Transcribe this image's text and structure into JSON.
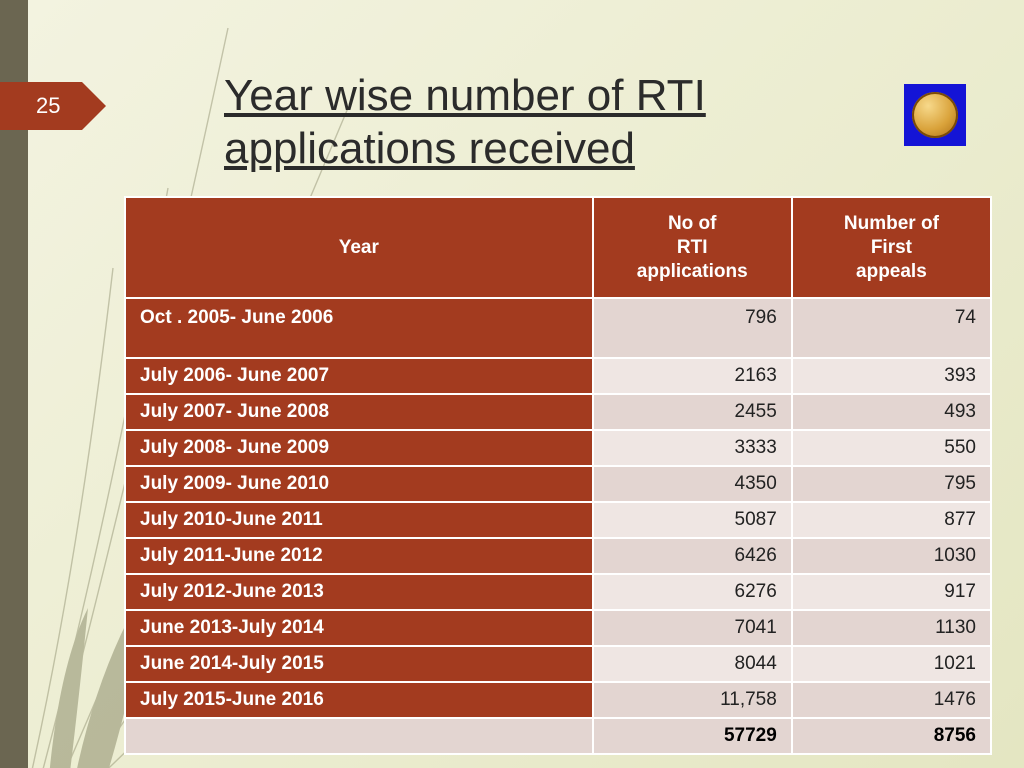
{
  "page_number": "25",
  "title": "Year wise number of RTI applications received",
  "colors": {
    "accent": "#a33b1f",
    "sidebar": "#6b6651",
    "logo_bg": "#1414d6",
    "bg_grad_from": "#f3f3e0",
    "bg_grad_to": "#e4e6c2",
    "row_dark": "#a33b1f",
    "row_light_a": "#e3d5d1",
    "row_light_b": "#efe6e3",
    "total_row": "#e3d5d1",
    "header_text": "#ffffff",
    "cell_text": "#222222"
  },
  "table": {
    "columns": [
      "Year",
      "No of\nRTI\napplications",
      "Number of\nFirst\nappeals"
    ],
    "col_widths_pct": [
      54,
      23,
      23
    ],
    "rows": [
      {
        "year": "Oct . 2005- June 2006",
        "apps": "796",
        "appeals": "74",
        "tall": true
      },
      {
        "year": "July 2006- June 2007",
        "apps": "2163",
        "appeals": "393"
      },
      {
        "year": "July 2007- June 2008",
        "apps": "2455",
        "appeals": "493"
      },
      {
        "year": "July 2008- June 2009",
        "apps": "3333",
        "appeals": "550"
      },
      {
        "year": "July 2009- June 2010",
        "apps": "4350",
        "appeals": "795"
      },
      {
        "year": "July 2010-June 2011",
        "apps": "5087",
        "appeals": "877"
      },
      {
        "year": "July 2011-June 2012",
        "apps": "6426",
        "appeals": "1030"
      },
      {
        "year": "July 2012-June 2013",
        "apps": "6276",
        "appeals": "917"
      },
      {
        "year": "June 2013-July  2014",
        "apps": "7041",
        "appeals": "1130"
      },
      {
        "year": "June 2014-July 2015",
        "apps": "8044",
        "appeals": "1021"
      },
      {
        "year": "July 2015-June 2016",
        "apps": "11,758",
        "appeals": "1476"
      }
    ],
    "totals": {
      "year": "",
      "apps": "57729",
      "appeals": "8756"
    }
  }
}
